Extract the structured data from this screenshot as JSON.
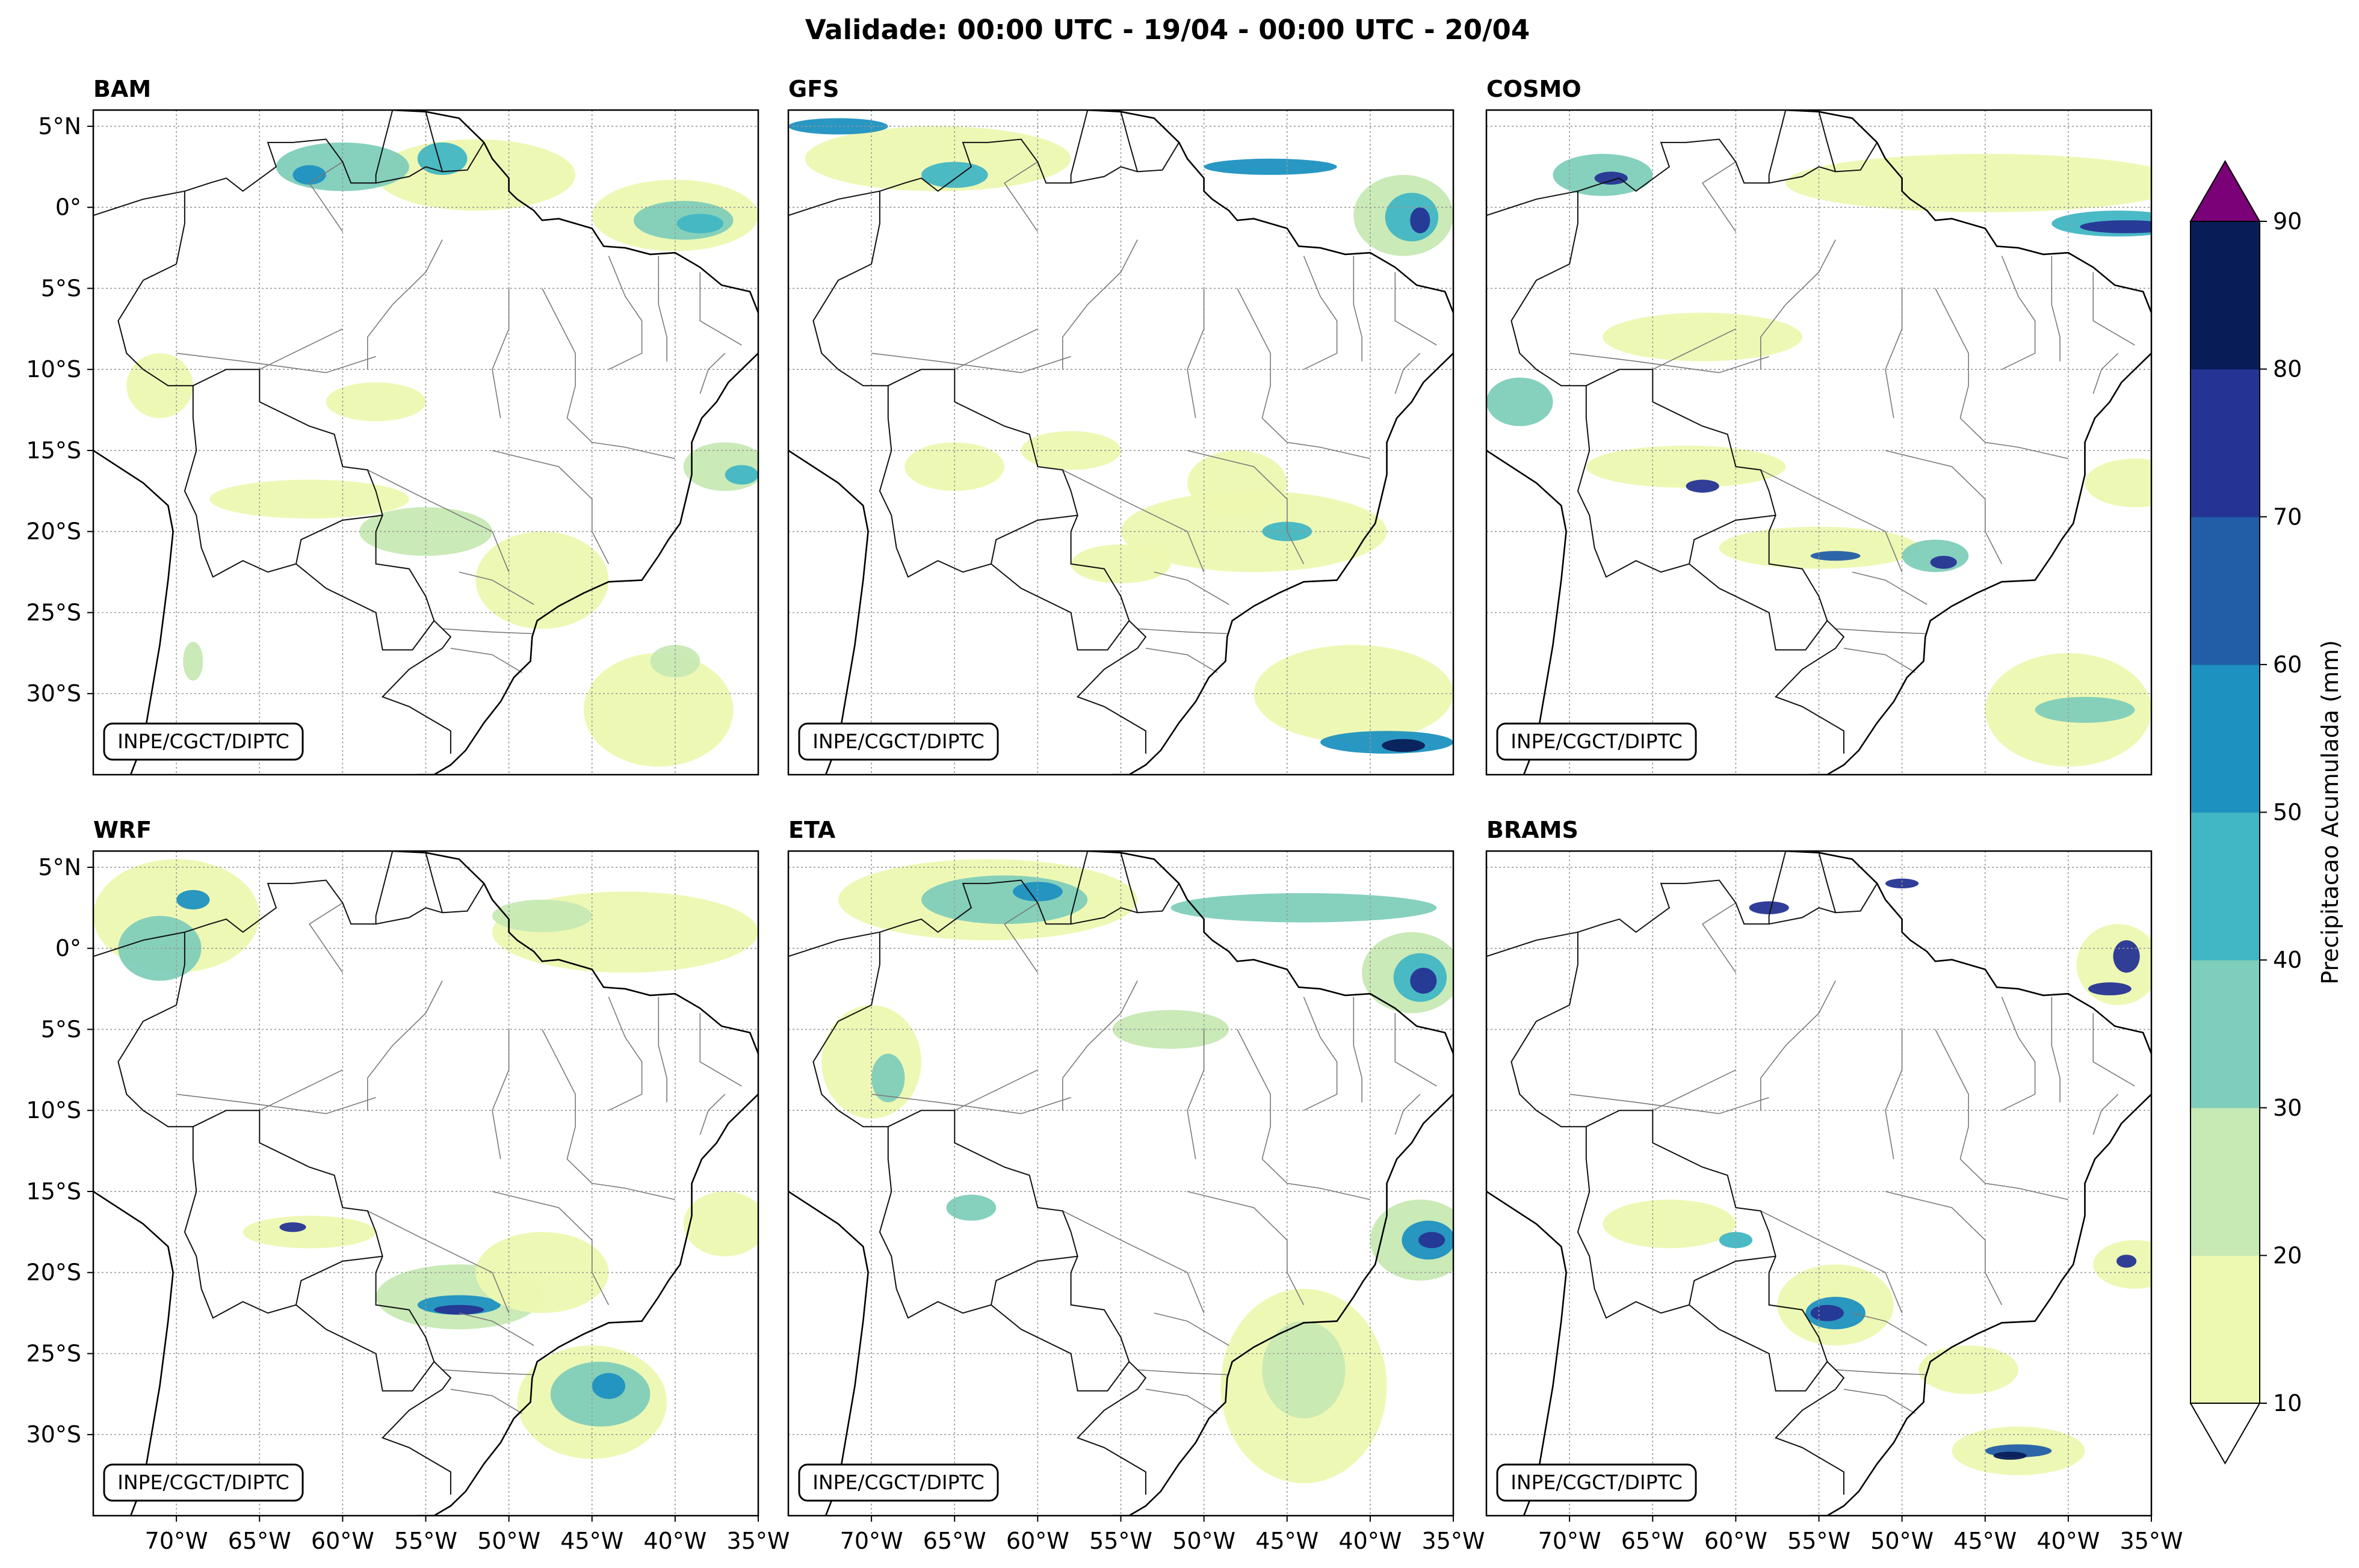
{
  "title": "Validade: 00:00 UTC - 19/04 - 00:00 UTC - 20/04",
  "credit": "INPE/CGCT/DIPTC",
  "map_extent": {
    "lon_min": -75,
    "lon_max": -35,
    "lat_min": -35,
    "lat_max": 6
  },
  "lat_ticks": [
    {
      "value": 5,
      "label": "5°N"
    },
    {
      "value": 0,
      "label": "0°"
    },
    {
      "value": -5,
      "label": "5°S"
    },
    {
      "value": -10,
      "label": "10°S"
    },
    {
      "value": -15,
      "label": "15°S"
    },
    {
      "value": -20,
      "label": "20°S"
    },
    {
      "value": -25,
      "label": "25°S"
    },
    {
      "value": -30,
      "label": "30°S"
    }
  ],
  "lon_ticks": [
    {
      "value": -70,
      "label": "70°W"
    },
    {
      "value": -65,
      "label": "65°W"
    },
    {
      "value": -60,
      "label": "60°W"
    },
    {
      "value": -55,
      "label": "55°W"
    },
    {
      "value": -50,
      "label": "50°W"
    },
    {
      "value": -45,
      "label": "45°W"
    },
    {
      "value": -40,
      "label": "40°W"
    },
    {
      "value": -35,
      "label": "35°W"
    }
  ],
  "colorbar": {
    "label": "Precipitacao Acumulada (mm)",
    "levels": [
      {
        "value": 10,
        "label": "10",
        "color": "#edf8b1"
      },
      {
        "value": 20,
        "label": "20",
        "color": "#c7e9b4"
      },
      {
        "value": 30,
        "label": "30",
        "color": "#7fcdbb"
      },
      {
        "value": 40,
        "label": "40",
        "color": "#41b6c4"
      },
      {
        "value": 50,
        "label": "50",
        "color": "#1d91c0"
      },
      {
        "value": 60,
        "label": "60",
        "color": "#225ea8"
      },
      {
        "value": 70,
        "label": "70",
        "color": "#253494"
      },
      {
        "value": 80,
        "label": "80",
        "color": "#081d58"
      },
      {
        "value": 90,
        "label": "90",
        "color": "#7a0177"
      }
    ],
    "under_color": "#ffffff",
    "over_color": "#7a0177"
  },
  "panels": [
    {
      "name": "BAM",
      "precip": [
        {
          "lon": -52,
          "lat": 2,
          "rx": 6,
          "ry": 2.2,
          "v": 15
        },
        {
          "lon": -60,
          "lat": 2.5,
          "rx": 4,
          "ry": 1.5,
          "v": 35
        },
        {
          "lon": -62,
          "lat": 2,
          "rx": 1,
          "ry": 0.6,
          "v": 55
        },
        {
          "lon": -54,
          "lat": 3,
          "rx": 1.5,
          "ry": 1,
          "v": 40
        },
        {
          "lon": -40,
          "lat": -0.5,
          "rx": 5,
          "ry": 2.2,
          "v": 15
        },
        {
          "lon": -39.5,
          "lat": -0.8,
          "rx": 3,
          "ry": 1.2,
          "v": 35
        },
        {
          "lon": -38.5,
          "lat": -1,
          "rx": 1.4,
          "ry": 0.6,
          "v": 45
        },
        {
          "lon": -37,
          "lat": -16,
          "rx": 2.5,
          "ry": 1.5,
          "v": 25
        },
        {
          "lon": -36,
          "lat": -16.5,
          "rx": 1,
          "ry": 0.6,
          "v": 40
        },
        {
          "lon": -62,
          "lat": -18,
          "rx": 6,
          "ry": 1.2,
          "v": 15
        },
        {
          "lon": -55,
          "lat": -20,
          "rx": 4,
          "ry": 1.5,
          "v": 25
        },
        {
          "lon": -48,
          "lat": -23,
          "rx": 4,
          "ry": 3,
          "v": 15
        },
        {
          "lon": -41,
          "lat": -31,
          "rx": 4.5,
          "ry": 3.5,
          "v": 15
        },
        {
          "lon": -40,
          "lat": -28,
          "rx": 1.5,
          "ry": 1,
          "v": 25
        },
        {
          "lon": -71,
          "lat": -11,
          "rx": 2,
          "ry": 2,
          "v": 15
        },
        {
          "lon": -58,
          "lat": -12,
          "rx": 3,
          "ry": 1.2,
          "v": 15
        },
        {
          "lon": -69,
          "lat": -28,
          "rx": 0.6,
          "ry": 1.2,
          "v": 25
        }
      ]
    },
    {
      "name": "GFS",
      "precip": [
        {
          "lon": -66,
          "lat": 3,
          "rx": 8,
          "ry": 2,
          "v": 15
        },
        {
          "lon": -72,
          "lat": 5,
          "rx": 3,
          "ry": 0.5,
          "v": 55
        },
        {
          "lon": -65,
          "lat": 2,
          "rx": 2,
          "ry": 0.8,
          "v": 40
        },
        {
          "lon": -46,
          "lat": 2.5,
          "rx": 4,
          "ry": 0.5,
          "v": 55
        },
        {
          "lon": -38,
          "lat": -0.5,
          "rx": 3,
          "ry": 2.5,
          "v": 25
        },
        {
          "lon": -37.5,
          "lat": -0.6,
          "rx": 1.6,
          "ry": 1.5,
          "v": 45
        },
        {
          "lon": -37,
          "lat": -0.8,
          "rx": 0.6,
          "ry": 0.8,
          "v": 75
        },
        {
          "lon": -47,
          "lat": -20,
          "rx": 8,
          "ry": 2.5,
          "v": 15
        },
        {
          "lon": -45,
          "lat": -20,
          "rx": 1.5,
          "ry": 0.6,
          "v": 40
        },
        {
          "lon": -48,
          "lat": -17,
          "rx": 3,
          "ry": 2,
          "v": 15
        },
        {
          "lon": -41,
          "lat": -30,
          "rx": 6,
          "ry": 3,
          "v": 15
        },
        {
          "lon": -39,
          "lat": -33,
          "rx": 4,
          "ry": 0.7,
          "v": 55
        },
        {
          "lon": -38,
          "lat": -33.2,
          "rx": 1.3,
          "ry": 0.4,
          "v": 80
        },
        {
          "lon": -55,
          "lat": -22,
          "rx": 3,
          "ry": 1.2,
          "v": 15
        },
        {
          "lon": -58,
          "lat": -15,
          "rx": 3,
          "ry": 1.2,
          "v": 15
        },
        {
          "lon": -65,
          "lat": -16,
          "rx": 3,
          "ry": 1.5,
          "v": 15
        }
      ]
    },
    {
      "name": "COSMO",
      "precip": [
        {
          "lon": -45,
          "lat": 1.5,
          "rx": 12,
          "ry": 1.8,
          "v": 15
        },
        {
          "lon": -37,
          "lat": -1,
          "rx": 4,
          "ry": 0.8,
          "v": 40
        },
        {
          "lon": -36.5,
          "lat": -1.2,
          "rx": 2.8,
          "ry": 0.4,
          "v": 75
        },
        {
          "lon": -68,
          "lat": 2,
          "rx": 3,
          "ry": 1.3,
          "v": 30
        },
        {
          "lon": -67.5,
          "lat": 1.8,
          "rx": 1,
          "ry": 0.4,
          "v": 75
        },
        {
          "lon": -63,
          "lat": -16,
          "rx": 6,
          "ry": 1.3,
          "v": 15
        },
        {
          "lon": -62,
          "lat": -17.2,
          "rx": 1,
          "ry": 0.4,
          "v": 75
        },
        {
          "lon": -55,
          "lat": -21,
          "rx": 6,
          "ry": 1.3,
          "v": 15
        },
        {
          "lon": -54,
          "lat": -21.5,
          "rx": 1.5,
          "ry": 0.3,
          "v": 65
        },
        {
          "lon": -48,
          "lat": -21.5,
          "rx": 2,
          "ry": 1,
          "v": 30
        },
        {
          "lon": -47.5,
          "lat": -21.9,
          "rx": 0.8,
          "ry": 0.4,
          "v": 75
        },
        {
          "lon": -40,
          "lat": -31,
          "rx": 5,
          "ry": 3.5,
          "v": 15
        },
        {
          "lon": -39,
          "lat": -31,
          "rx": 3,
          "ry": 0.8,
          "v": 35
        },
        {
          "lon": -36,
          "lat": -17,
          "rx": 3,
          "ry": 1.5,
          "v": 15
        },
        {
          "lon": -73,
          "lat": -12,
          "rx": 2,
          "ry": 1.5,
          "v": 30
        },
        {
          "lon": -62,
          "lat": -8,
          "rx": 6,
          "ry": 1.5,
          "v": 15
        }
      ]
    },
    {
      "name": "WRF",
      "precip": [
        {
          "lon": -70,
          "lat": 2,
          "rx": 5,
          "ry": 3.5,
          "v": 15
        },
        {
          "lon": -71,
          "lat": 0,
          "rx": 2.5,
          "ry": 2,
          "v": 35
        },
        {
          "lon": -69,
          "lat": 3,
          "rx": 1,
          "ry": 0.6,
          "v": 55
        },
        {
          "lon": -43,
          "lat": 1,
          "rx": 8,
          "ry": 2.5,
          "v": 15
        },
        {
          "lon": -48,
          "lat": 2,
          "rx": 3,
          "ry": 1,
          "v": 25
        },
        {
          "lon": -37,
          "lat": -17,
          "rx": 2.5,
          "ry": 2,
          "v": 15
        },
        {
          "lon": -53,
          "lat": -21.5,
          "rx": 5,
          "ry": 2,
          "v": 20
        },
        {
          "lon": -53,
          "lat": -22,
          "rx": 2.5,
          "ry": 0.6,
          "v": 55
        },
        {
          "lon": -53,
          "lat": -22.3,
          "rx": 1.5,
          "ry": 0.3,
          "v": 75
        },
        {
          "lon": -45,
          "lat": -28,
          "rx": 4.5,
          "ry": 3.5,
          "v": 15
        },
        {
          "lon": -44.5,
          "lat": -27.5,
          "rx": 3,
          "ry": 2,
          "v": 35
        },
        {
          "lon": -44,
          "lat": -27,
          "rx": 1,
          "ry": 0.8,
          "v": 50
        },
        {
          "lon": -62,
          "lat": -17.5,
          "rx": 4,
          "ry": 1,
          "v": 15
        },
        {
          "lon": -63,
          "lat": -17.2,
          "rx": 0.8,
          "ry": 0.3,
          "v": 75
        },
        {
          "lon": -48,
          "lat": -20,
          "rx": 4,
          "ry": 2.5,
          "v": 15
        }
      ]
    },
    {
      "name": "ETA",
      "precip": [
        {
          "lon": -63,
          "lat": 3,
          "rx": 9,
          "ry": 2.5,
          "v": 15
        },
        {
          "lon": -62,
          "lat": 3,
          "rx": 5,
          "ry": 1.5,
          "v": 35
        },
        {
          "lon": -60,
          "lat": 3.5,
          "rx": 1.5,
          "ry": 0.6,
          "v": 55
        },
        {
          "lon": -44,
          "lat": 2.5,
          "rx": 8,
          "ry": 0.9,
          "v": 35
        },
        {
          "lon": -37.5,
          "lat": -1.5,
          "rx": 3,
          "ry": 2.5,
          "v": 25
        },
        {
          "lon": -37,
          "lat": -1.8,
          "rx": 1.6,
          "ry": 1.5,
          "v": 45
        },
        {
          "lon": -36.8,
          "lat": -2,
          "rx": 0.8,
          "ry": 0.8,
          "v": 75
        },
        {
          "lon": -52,
          "lat": -5,
          "rx": 3.5,
          "ry": 1.2,
          "v": 25
        },
        {
          "lon": -70,
          "lat": -7,
          "rx": 3,
          "ry": 3.5,
          "v": 15
        },
        {
          "lon": -69,
          "lat": -8,
          "rx": 1,
          "ry": 1.5,
          "v": 30
        },
        {
          "lon": -37,
          "lat": -18,
          "rx": 3,
          "ry": 2.5,
          "v": 25
        },
        {
          "lon": -36.5,
          "lat": -18,
          "rx": 1.6,
          "ry": 1.2,
          "v": 50
        },
        {
          "lon": -36.3,
          "lat": -18,
          "rx": 0.8,
          "ry": 0.5,
          "v": 75
        },
        {
          "lon": -44,
          "lat": -27,
          "rx": 5,
          "ry": 6,
          "v": 15
        },
        {
          "lon": -44,
          "lat": -26,
          "rx": 2.5,
          "ry": 3,
          "v": 25
        },
        {
          "lon": -64,
          "lat": -16,
          "rx": 1.5,
          "ry": 0.8,
          "v": 30
        }
      ]
    },
    {
      "name": "BRAMS",
      "precip": [
        {
          "lon": -54,
          "lat": -22,
          "rx": 3.5,
          "ry": 2.5,
          "v": 15
        },
        {
          "lon": -54,
          "lat": -22.5,
          "rx": 1.8,
          "ry": 1,
          "v": 55
        },
        {
          "lon": -54.5,
          "lat": -22.5,
          "rx": 1,
          "ry": 0.5,
          "v": 75
        },
        {
          "lon": -43,
          "lat": -31,
          "rx": 4,
          "ry": 1.5,
          "v": 15
        },
        {
          "lon": -43,
          "lat": -31,
          "rx": 2,
          "ry": 0.4,
          "v": 65
        },
        {
          "lon": -43.5,
          "lat": -31.3,
          "rx": 1,
          "ry": 0.25,
          "v": 80
        },
        {
          "lon": -37,
          "lat": -1,
          "rx": 2.5,
          "ry": 2.5,
          "v": 15
        },
        {
          "lon": -36.5,
          "lat": -0.5,
          "rx": 0.8,
          "ry": 1,
          "v": 75
        },
        {
          "lon": -37.5,
          "lat": -2.5,
          "rx": 1.3,
          "ry": 0.4,
          "v": 75
        },
        {
          "lon": -36,
          "lat": -19.5,
          "rx": 2.5,
          "ry": 1.5,
          "v": 15
        },
        {
          "lon": -36.5,
          "lat": -19.3,
          "rx": 0.6,
          "ry": 0.4,
          "v": 75
        },
        {
          "lon": -64,
          "lat": -17,
          "rx": 4,
          "ry": 1.5,
          "v": 15
        },
        {
          "lon": -60,
          "lat": -18,
          "rx": 1,
          "ry": 0.5,
          "v": 45
        },
        {
          "lon": -58,
          "lat": 2.5,
          "rx": 1.2,
          "ry": 0.4,
          "v": 75
        },
        {
          "lon": -50,
          "lat": 4,
          "rx": 1,
          "ry": 0.3,
          "v": 75
        },
        {
          "lon": -46,
          "lat": -26,
          "rx": 3,
          "ry": 1.5,
          "v": 15
        }
      ]
    }
  ]
}
